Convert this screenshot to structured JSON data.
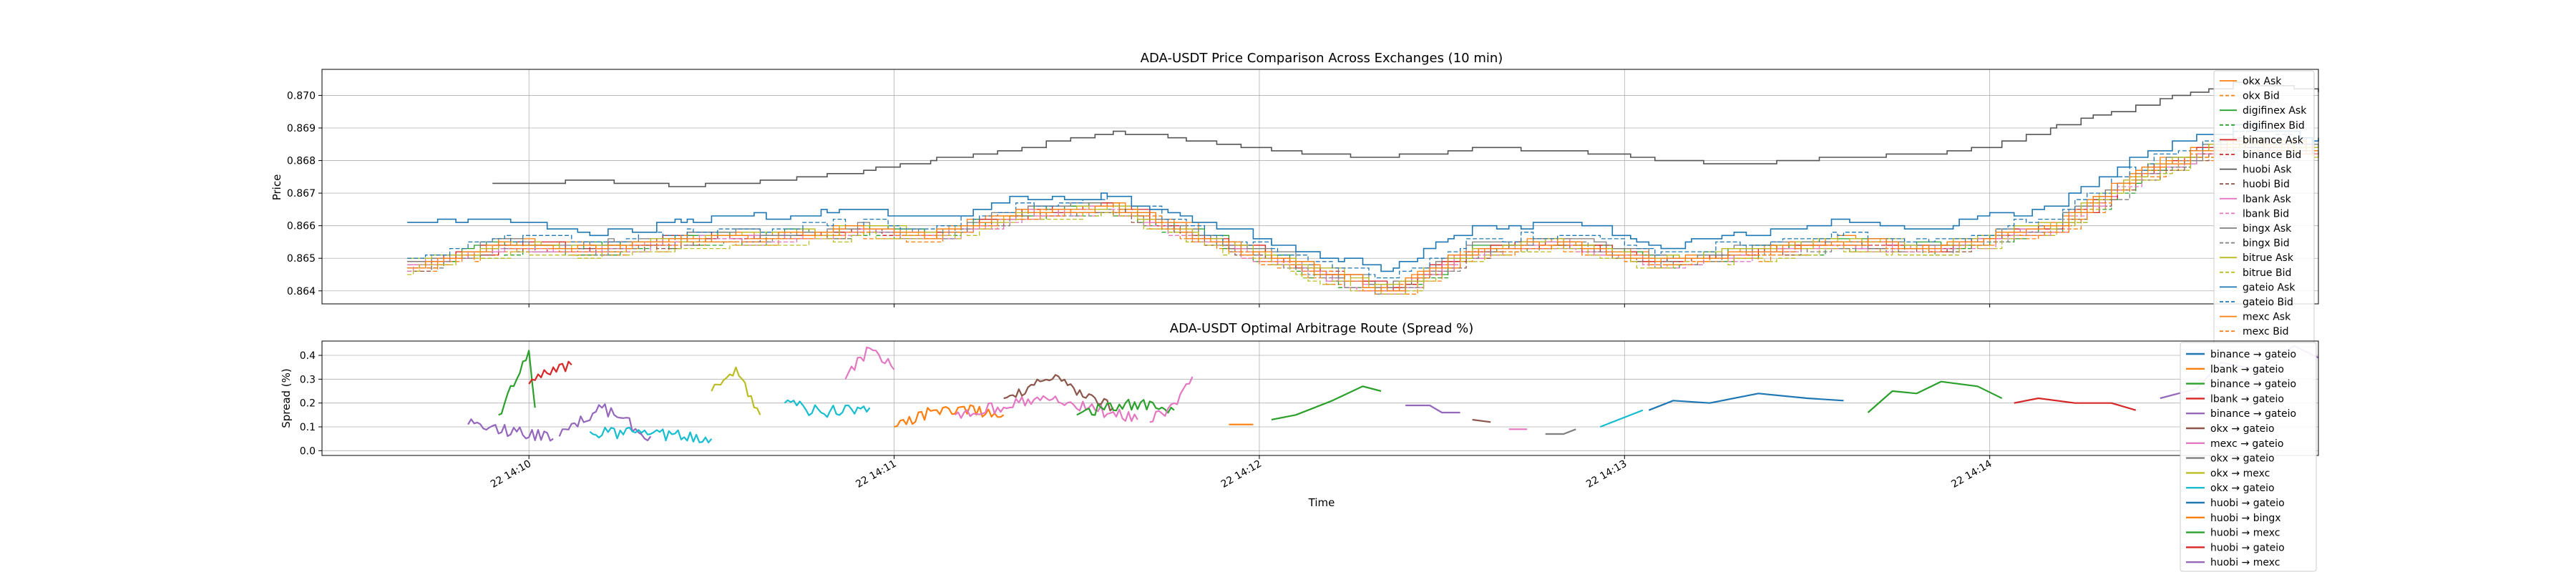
{
  "chart_data": [
    {
      "type": "line",
      "title": "ADA-USDT Price Comparison Across Exchanges (10 min)",
      "ylabel": "Price",
      "xlabel": "",
      "x_ticks": [
        "22 14:10",
        "22 14:11",
        "22 14:12",
        "22 14:13",
        "22 14:14"
      ],
      "y_ticks": [
        "0.864",
        "0.865",
        "0.866",
        "0.867",
        "0.868",
        "0.869",
        "0.870"
      ],
      "ylim": [
        0.8636,
        0.8708
      ],
      "xlim": [
        "14:09:26",
        "14:14:54"
      ],
      "grid": true,
      "legend_position": "right",
      "legend": [
        {
          "label": "okx Ask",
          "color": "#ff7f0e",
          "dash": "solid"
        },
        {
          "label": "okx Bid",
          "color": "#ff7f0e",
          "dash": "dashed"
        },
        {
          "label": "digifinex Ask",
          "color": "#2ca02c",
          "dash": "solid"
        },
        {
          "label": "digifinex Bid",
          "color": "#2ca02c",
          "dash": "dashed"
        },
        {
          "label": "binance Ask",
          "color": "#d62728",
          "dash": "solid"
        },
        {
          "label": "binance Bid",
          "color": "#d62728",
          "dash": "dashed"
        },
        {
          "label": "huobi Ask",
          "color": "#555555",
          "dash": "solid"
        },
        {
          "label": "huobi Bid",
          "color": "#8c564b",
          "dash": "dashed"
        },
        {
          "label": "lbank Ask",
          "color": "#e377c2",
          "dash": "solid"
        },
        {
          "label": "lbank Bid",
          "color": "#e377c2",
          "dash": "dashed"
        },
        {
          "label": "bingx Ask",
          "color": "#7f7f7f",
          "dash": "solid"
        },
        {
          "label": "bingx Bid",
          "color": "#7f7f7f",
          "dash": "dashed"
        },
        {
          "label": "bitrue Ask",
          "color": "#bcbd22",
          "dash": "solid"
        },
        {
          "label": "bitrue Bid",
          "color": "#bcbd22",
          "dash": "dashed"
        },
        {
          "label": "gateio Ask",
          "color": "#1f77b4",
          "dash": "solid"
        },
        {
          "label": "gateio Bid",
          "color": "#1f77b4",
          "dash": "dashed"
        },
        {
          "label": "mexc Ask",
          "color": "#ff7f0e",
          "dash": "solid"
        },
        {
          "label": "mexc Bid",
          "color": "#ff7f0e",
          "dash": "dashed"
        }
      ],
      "series_profile": {
        "times": [
          "14:09:26",
          "14:09:40",
          "14:09:55",
          "14:10:10",
          "14:10:25",
          "14:10:40",
          "14:10:55",
          "14:11:05",
          "14:11:20",
          "14:11:35",
          "14:11:50",
          "14:12:05",
          "14:12:20",
          "14:12:35",
          "14:12:50",
          "14:13:05",
          "14:13:20",
          "14:13:35",
          "14:13:50",
          "14:14:00",
          "14:14:10",
          "14:14:25",
          "14:14:40",
          "14:14:54"
        ],
        "huobi_ask": [
          0.8673,
          0.867,
          0.8673,
          0.8674,
          0.8672,
          0.8674,
          0.8677,
          0.868,
          0.8684,
          0.8689,
          0.8686,
          0.8682,
          0.8681,
          0.8684,
          0.8683,
          0.868,
          0.8679,
          0.8681,
          0.8682,
          0.8685,
          0.869,
          0.8698,
          0.8704,
          0.8701
        ],
        "gateio_ask": [
          0.8658,
          0.8661,
          0.8662,
          0.8657,
          0.8662,
          0.8663,
          0.8665,
          0.8662,
          0.8668,
          0.8669,
          0.8661,
          0.8653,
          0.8646,
          0.8659,
          0.8661,
          0.8654,
          0.8658,
          0.8661,
          0.8659,
          0.8663,
          0.8666,
          0.8683,
          0.869,
          0.8687
        ],
        "mid": [
          0.8652,
          0.8648,
          0.8654,
          0.8653,
          0.8656,
          0.8657,
          0.8659,
          0.8657,
          0.8664,
          0.8666,
          0.8656,
          0.8648,
          0.864,
          0.8653,
          0.8655,
          0.8649,
          0.8652,
          0.8655,
          0.8653,
          0.8657,
          0.866,
          0.8677,
          0.8686,
          0.8683
        ]
      }
    },
    {
      "type": "line",
      "title": "ADA-USDT Optimal Arbitrage Route (Spread %)",
      "ylabel": "Spread (%)",
      "xlabel": "Time",
      "x_ticks": [
        "22 14:10",
        "22 14:11",
        "22 14:12",
        "22 14:13",
        "22 14:14"
      ],
      "y_ticks": [
        "0.0",
        "0.1",
        "0.2",
        "0.3",
        "0.4"
      ],
      "ylim": [
        -0.02,
        0.46
      ],
      "grid": true,
      "legend_position": "right",
      "legend": [
        {
          "label": "binance → gateio",
          "color": "#1f77b4"
        },
        {
          "label": "lbank → gateio",
          "color": "#ff7f0e"
        },
        {
          "label": "binance → gateio",
          "color": "#2ca02c"
        },
        {
          "label": "lbank → gateio",
          "color": "#d62728"
        },
        {
          "label": "binance → gateio",
          "color": "#9467bd"
        },
        {
          "label": "okx → gateio",
          "color": "#8c564b"
        },
        {
          "label": "mexc → gateio",
          "color": "#e377c2"
        },
        {
          "label": "okx → gateio",
          "color": "#7f7f7f"
        },
        {
          "label": "okx → mexc",
          "color": "#bcbd22"
        },
        {
          "label": "okx → gateio",
          "color": "#17becf"
        },
        {
          "label": "huobi → gateio",
          "color": "#1f77b4"
        },
        {
          "label": "huobi → bingx",
          "color": "#ff7f0e"
        },
        {
          "label": "huobi → mexc",
          "color": "#2ca02c"
        },
        {
          "label": "huobi → gateio",
          "color": "#d62728"
        },
        {
          "label": "huobi → mexc",
          "color": "#9467bd"
        }
      ],
      "segments": [
        {
          "color": "#9467bd",
          "points": [
            [
              "14:09:50",
              0.11
            ],
            [
              "14:09:58",
              0.08
            ],
            [
              "14:10:04",
              0.05
            ]
          ]
        },
        {
          "color": "#2ca02c",
          "points": [
            [
              "14:09:55",
              0.15
            ],
            [
              "14:09:58",
              0.3
            ],
            [
              "14:10:00",
              0.42
            ],
            [
              "14:10:01",
              0.18
            ]
          ]
        },
        {
          "color": "#d62728",
          "points": [
            [
              "14:10:00",
              0.28
            ],
            [
              "14:10:04",
              0.35
            ],
            [
              "14:10:07",
              0.36
            ]
          ]
        },
        {
          "color": "#9467bd",
          "points": [
            [
              "14:10:05",
              0.06
            ],
            [
              "14:10:12",
              0.18
            ],
            [
              "14:10:20",
              0.06
            ]
          ]
        },
        {
          "color": "#17becf",
          "points": [
            [
              "14:10:10",
              0.08
            ],
            [
              "14:10:20",
              0.07
            ],
            [
              "14:10:30",
              0.05
            ]
          ]
        },
        {
          "color": "#bcbd22",
          "points": [
            [
              "14:10:30",
              0.25
            ],
            [
              "14:10:34",
              0.35
            ],
            [
              "14:10:38",
              0.15
            ]
          ]
        },
        {
          "color": "#17becf",
          "points": [
            [
              "14:10:42",
              0.2
            ],
            [
              "14:10:48",
              0.16
            ],
            [
              "14:10:56",
              0.18
            ]
          ]
        },
        {
          "color": "#e377c2",
          "points": [
            [
              "14:10:52",
              0.3
            ],
            [
              "14:10:56",
              0.43
            ],
            [
              "14:11:00",
              0.34
            ]
          ]
        },
        {
          "color": "#ff7f0e",
          "points": [
            [
              "14:11:00",
              0.1
            ],
            [
              "14:11:08",
              0.18
            ],
            [
              "14:11:18",
              0.15
            ]
          ]
        },
        {
          "color": "#e377c2",
          "points": [
            [
              "14:11:10",
              0.15
            ],
            [
              "14:11:25",
              0.22
            ],
            [
              "14:11:40",
              0.13
            ]
          ]
        },
        {
          "color": "#8c564b",
          "points": [
            [
              "14:11:18",
              0.22
            ],
            [
              "14:11:26",
              0.3
            ],
            [
              "14:11:36",
              0.18
            ]
          ]
        },
        {
          "color": "#2ca02c",
          "points": [
            [
              "14:11:30",
              0.15
            ],
            [
              "14:11:38",
              0.2
            ],
            [
              "14:11:46",
              0.17
            ]
          ]
        },
        {
          "color": "#e377c2",
          "points": [
            [
              "14:11:42",
              0.12
            ],
            [
              "14:11:46",
              0.2
            ],
            [
              "14:11:49",
              0.31
            ]
          ]
        },
        {
          "color": "#ff7f0e",
          "points": [
            [
              "14:11:55",
              0.11
            ],
            [
              "14:11:59",
              0.11
            ]
          ]
        },
        {
          "color": "#2ca02c",
          "points": [
            [
              "14:12:02",
              0.13
            ],
            [
              "14:12:06",
              0.15
            ],
            [
              "14:12:12",
              0.21
            ],
            [
              "14:12:17",
              0.27
            ],
            [
              "14:12:20",
              0.25
            ]
          ]
        },
        {
          "color": "#9467bd",
          "points": [
            [
              "14:12:24",
              0.19
            ],
            [
              "14:12:28",
              0.19
            ],
            [
              "14:12:30",
              0.16
            ],
            [
              "14:12:33",
              0.16
            ]
          ]
        },
        {
          "color": "#8c564b",
          "points": [
            [
              "14:12:35",
              0.13
            ],
            [
              "14:12:38",
              0.12
            ]
          ]
        },
        {
          "color": "#e377c2",
          "points": [
            [
              "14:12:41",
              0.09
            ],
            [
              "14:12:44",
              0.09
            ]
          ]
        },
        {
          "color": "#7f7f7f",
          "points": [
            [
              "14:12:47",
              0.07
            ],
            [
              "14:12:50",
              0.07
            ],
            [
              "14:12:52",
              0.09
            ]
          ]
        },
        {
          "color": "#17becf",
          "points": [
            [
              "14:12:56",
              0.1
            ],
            [
              "14:13:00",
              0.14
            ],
            [
              "14:13:03",
              0.17
            ]
          ]
        },
        {
          "color": "#1f77b4",
          "points": [
            [
              "14:13:04",
              0.17
            ],
            [
              "14:13:08",
              0.21
            ],
            [
              "14:13:14",
              0.2
            ],
            [
              "14:13:22",
              0.24
            ],
            [
              "14:13:30",
              0.22
            ],
            [
              "14:13:36",
              0.21
            ]
          ]
        },
        {
          "color": "#2ca02c",
          "points": [
            [
              "14:13:40",
              0.16
            ],
            [
              "14:13:44",
              0.25
            ],
            [
              "14:13:48",
              0.24
            ],
            [
              "14:13:52",
              0.29
            ],
            [
              "14:13:58",
              0.27
            ],
            [
              "14:14:02",
              0.22
            ]
          ]
        },
        {
          "color": "#d62728",
          "points": [
            [
              "14:14:04",
              0.2
            ],
            [
              "14:14:08",
              0.22
            ],
            [
              "14:14:14",
              0.2
            ],
            [
              "14:14:20",
              0.2
            ],
            [
              "14:14:24",
              0.17
            ]
          ]
        },
        {
          "color": "#9467bd",
          "points": [
            [
              "14:14:28",
              0.22
            ],
            [
              "14:14:34",
              0.26
            ],
            [
              "14:14:38",
              0.37
            ],
            [
              "14:14:44",
              0.34
            ],
            [
              "14:14:50",
              0.44
            ],
            [
              "14:14:54",
              0.39
            ]
          ]
        }
      ]
    }
  ]
}
